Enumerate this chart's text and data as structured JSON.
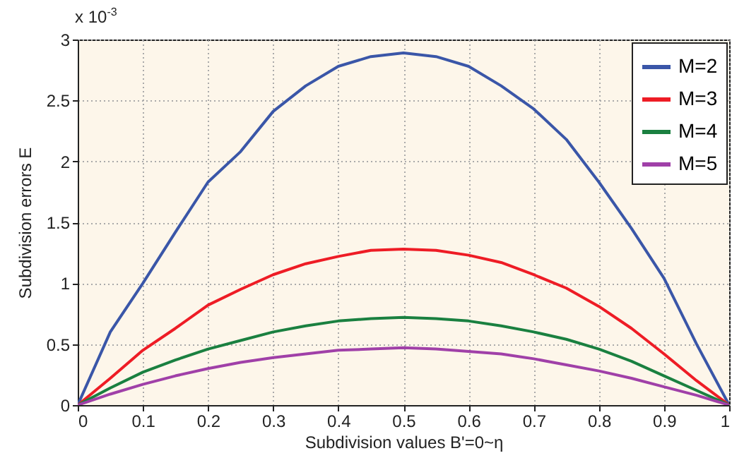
{
  "chart_data": {
    "type": "line",
    "xlabel": "Subdivision values B'=0~η",
    "ylabel": "Subdivision errors E",
    "x": [
      0,
      0.05,
      0.1,
      0.15,
      0.2,
      0.25,
      0.3,
      0.35,
      0.4,
      0.45,
      0.5,
      0.55,
      0.6,
      0.65,
      0.7,
      0.75,
      0.8,
      0.85,
      0.9,
      0.95,
      1
    ],
    "series": [
      {
        "name": "M=2",
        "color": "#3a56a8",
        "values": [
          0,
          0.6,
          1.0,
          1.42,
          1.83,
          2.08,
          2.41,
          2.62,
          2.78,
          2.86,
          2.89,
          2.86,
          2.78,
          2.62,
          2.43,
          2.18,
          1.83,
          1.45,
          1.04,
          0.5,
          0
        ]
      },
      {
        "name": "M=3",
        "color": "#ee1c25",
        "values": [
          0,
          0.22,
          0.45,
          0.63,
          0.82,
          0.95,
          1.07,
          1.16,
          1.22,
          1.27,
          1.28,
          1.27,
          1.23,
          1.17,
          1.07,
          0.96,
          0.81,
          0.63,
          0.42,
          0.2,
          0
        ]
      },
      {
        "name": "M=4",
        "color": "#1a8040",
        "values": [
          0,
          0.14,
          0.27,
          0.37,
          0.46,
          0.53,
          0.6,
          0.65,
          0.69,
          0.71,
          0.72,
          0.71,
          0.69,
          0.65,
          0.6,
          0.54,
          0.46,
          0.36,
          0.24,
          0.12,
          0
        ]
      },
      {
        "name": "M=5",
        "color": "#a040a8",
        "values": [
          0,
          0.09,
          0.17,
          0.24,
          0.3,
          0.35,
          0.39,
          0.42,
          0.45,
          0.46,
          0.47,
          0.46,
          0.44,
          0.42,
          0.38,
          0.33,
          0.28,
          0.22,
          0.15,
          0.08,
          0
        ]
      }
    ],
    "xlim": [
      0,
      1
    ],
    "xticks": [
      0,
      0.1,
      0.2,
      0.3,
      0.4,
      0.5,
      0.6,
      0.7,
      0.8,
      0.9,
      1
    ],
    "ylim": [
      0,
      3
    ],
    "yticks": [
      0,
      0.5,
      1,
      1.5,
      2,
      2.5,
      3
    ],
    "annotations": [
      "x 10$^{-3}$"
    ],
    "grid": true,
    "legend": "top right"
  }
}
